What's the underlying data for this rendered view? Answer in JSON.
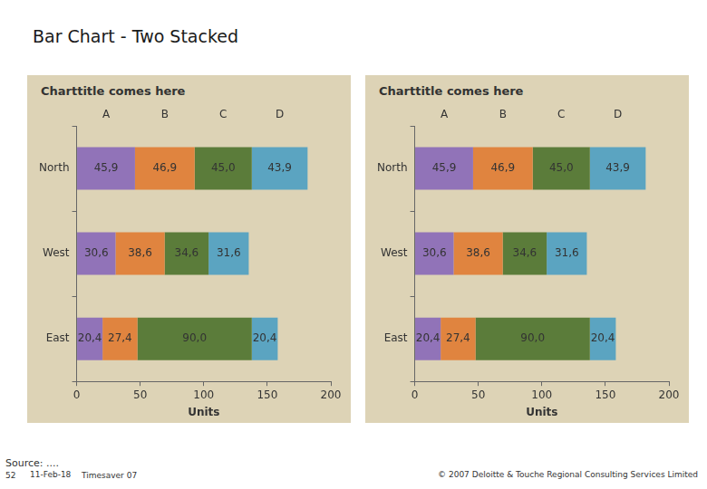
{
  "title": "Bar Chart - Two Stacked",
  "footer": {
    "source": "Source: ....",
    "page": "52",
    "date": "11-Feb-18",
    "label": "Timesaver 07",
    "copyright": "© 2007 Deloitte & Touche Regional Consulting Services Limited"
  },
  "chart_data": [
    {
      "type": "bar",
      "title": "Charttitle comes here",
      "x_label": "Units",
      "orientation": "horizontal",
      "stacked": true,
      "data_labels": true,
      "grid": false,
      "categories": [
        "North",
        "West",
        "East"
      ],
      "series": [
        {
          "name": "A",
          "color": "#9173b8",
          "values": [
            45.9,
            30.6,
            20.4
          ],
          "value_labels": [
            "45,9",
            "30,6",
            "20,4"
          ]
        },
        {
          "name": "B",
          "color": "#e0843f",
          "values": [
            46.9,
            38.6,
            27.4
          ],
          "value_labels": [
            "46,9",
            "38,6",
            "27,4"
          ]
        },
        {
          "name": "C",
          "color": "#5b7c3a",
          "values": [
            45.0,
            34.6,
            90.0
          ],
          "value_labels": [
            "45,0",
            "34,6",
            "90,0"
          ]
        },
        {
          "name": "D",
          "color": "#5ba4c1",
          "values": [
            43.9,
            31.6,
            20.4
          ],
          "value_labels": [
            "43,9",
            "31,6",
            "20,4"
          ]
        }
      ],
      "xlim": [
        0,
        200
      ],
      "xticks": [
        0,
        50,
        100,
        150,
        200
      ]
    },
    {
      "type": "bar",
      "title": "Charttitle comes here",
      "x_label": "Units",
      "orientation": "horizontal",
      "stacked": true,
      "data_labels": true,
      "grid": false,
      "categories": [
        "North",
        "West",
        "East"
      ],
      "series": [
        {
          "name": "A",
          "color": "#9173b8",
          "values": [
            45.9,
            30.6,
            20.4
          ],
          "value_labels": [
            "45,9",
            "30,6",
            "20,4"
          ]
        },
        {
          "name": "B",
          "color": "#e0843f",
          "values": [
            46.9,
            38.6,
            27.4
          ],
          "value_labels": [
            "46,9",
            "38,6",
            "27,4"
          ]
        },
        {
          "name": "C",
          "color": "#5b7c3a",
          "values": [
            45.0,
            34.6,
            90.0
          ],
          "value_labels": [
            "45,0",
            "34,6",
            "90,0"
          ]
        },
        {
          "name": "D",
          "color": "#5ba4c1",
          "values": [
            43.9,
            31.6,
            20.4
          ],
          "value_labels": [
            "43,9",
            "31,6",
            "20,4"
          ]
        }
      ],
      "xlim": [
        0,
        200
      ],
      "xticks": [
        0,
        50,
        100,
        150,
        200
      ]
    }
  ]
}
